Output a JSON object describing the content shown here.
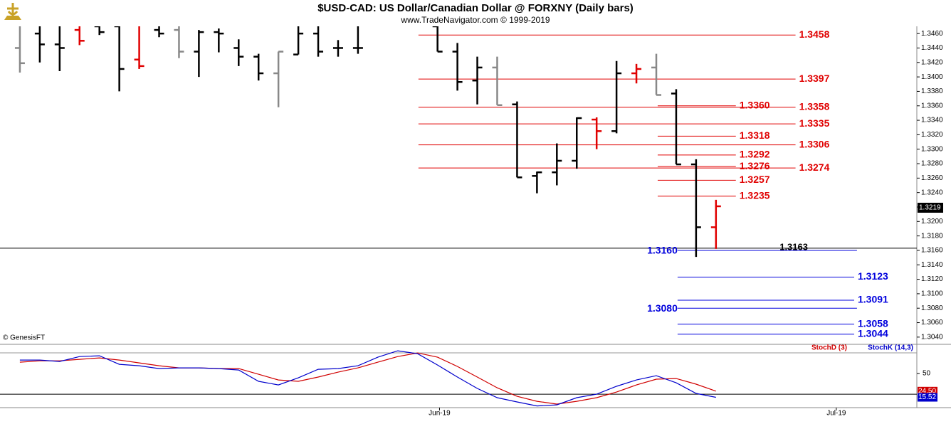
{
  "chart_data": [
    {
      "type": "ohlc",
      "title": "$USD-CAD:  US Dollar/Canadian Dollar @ FORXNY  (Daily bars)",
      "subtitle": "www.TradeNavigator.com © 1999-2019",
      "credit": "© GenesisFT",
      "x": [
        0,
        1,
        2,
        3,
        4,
        5,
        6,
        7,
        8,
        9,
        10,
        11,
        12,
        13,
        14,
        15,
        16,
        17,
        21,
        22,
        23,
        24,
        25,
        26,
        27,
        28,
        29,
        30,
        31,
        32,
        33,
        34,
        35
      ],
      "open": [
        1.344,
        1.346,
        1.3445,
        1.3465,
        1.347,
        1.347,
        1.3424,
        1.3465,
        1.3465,
        1.3435,
        1.3462,
        1.344,
        1.3428,
        1.3405,
        1.3431,
        1.346,
        1.344,
        1.344,
        1.347,
        1.3435,
        1.3395,
        1.3413,
        1.3362,
        1.3263,
        1.3268,
        1.3284,
        1.3341,
        1.3325,
        1.3405,
        1.3413,
        1.3377,
        1.3279,
        1.3192
      ],
      "high": [
        1.3475,
        1.348,
        1.348,
        1.3475,
        1.348,
        1.348,
        1.347,
        1.3475,
        1.348,
        1.3465,
        1.3467,
        1.3452,
        1.3432,
        1.3435,
        1.348,
        1.347,
        1.3451,
        1.347,
        1.348,
        1.3447,
        1.3428,
        1.3428,
        1.3366,
        1.3269,
        1.3308,
        1.3344,
        1.3344,
        1.3422,
        1.3418,
        1.3432,
        1.3383,
        1.3286,
        1.323
      ],
      "low": [
        1.3406,
        1.342,
        1.3408,
        1.3444,
        1.3458,
        1.338,
        1.3411,
        1.3455,
        1.3426,
        1.34,
        1.3434,
        1.3415,
        1.3395,
        1.3358,
        1.3431,
        1.3428,
        1.3428,
        1.3432,
        1.3435,
        1.3381,
        1.3362,
        1.3361,
        1.3261,
        1.3239,
        1.325,
        1.3273,
        1.33,
        1.3322,
        1.3391,
        1.3375,
        1.3279,
        1.3151,
        1.3162
      ],
      "close": [
        1.3419,
        1.3445,
        1.344,
        1.345,
        1.3462,
        1.3411,
        1.3415,
        1.346,
        1.3435,
        1.3462,
        1.346,
        1.3428,
        1.3405,
        1.3435,
        1.346,
        1.3435,
        1.344,
        1.344,
        1.3435,
        1.3393,
        1.3413,
        1.3361,
        1.3261,
        1.3268,
        1.3284,
        1.3343,
        1.3325,
        1.3405,
        1.3411,
        1.3375,
        1.3279,
        1.3192,
        1.3221
      ],
      "colors": [
        "#888888",
        "#000000",
        "#000000",
        "#e00000",
        "#000000",
        "#000000",
        "#e00000",
        "#000000",
        "#888888",
        "#000000",
        "#000000",
        "#000000",
        "#000000",
        "#888888",
        "#000000",
        "#000000",
        "#000000",
        "#000000",
        "#000000",
        "#000000",
        "#000000",
        "#888888",
        "#000000",
        "#000000",
        "#000000",
        "#000000",
        "#e00000",
        "#000000",
        "#e00000",
        "#888888",
        "#000000",
        "#000000",
        "#e00000"
      ],
      "xlim": [
        -1,
        45.1
      ],
      "ylim": [
        1.3031,
        1.347
      ],
      "xticks": [
        {
          "value": 21.1,
          "label": "Jun-19"
        },
        {
          "value": 41.05,
          "label": "Jul-19"
        }
      ],
      "yticks": [
        {
          "value": 1.304,
          "label": "1.3040"
        },
        {
          "value": 1.306,
          "label": "1.3060"
        },
        {
          "value": 1.308,
          "label": "1.3080"
        },
        {
          "value": 1.31,
          "label": "1.3100"
        },
        {
          "value": 1.312,
          "label": "1.3120"
        },
        {
          "value": 1.314,
          "label": "1.3140"
        },
        {
          "value": 1.316,
          "label": "1.3160"
        },
        {
          "value": 1.318,
          "label": "1.3180"
        },
        {
          "value": 1.32,
          "label": "1.3200"
        },
        {
          "value": 1.322,
          "label": "1.3220"
        },
        {
          "value": 1.324,
          "label": "1.3240"
        },
        {
          "value": 1.326,
          "label": "1.3260"
        },
        {
          "value": 1.328,
          "label": "1.3280"
        },
        {
          "value": 1.33,
          "label": "1.3300"
        },
        {
          "value": 1.332,
          "label": "1.3320"
        },
        {
          "value": 1.334,
          "label": "1.3340"
        },
        {
          "value": 1.336,
          "label": "1.3360"
        },
        {
          "value": 1.338,
          "label": "1.3380"
        },
        {
          "value": 1.34,
          "label": "1.3400"
        },
        {
          "value": 1.342,
          "label": "1.3420"
        },
        {
          "value": 1.344,
          "label": "1.3440"
        },
        {
          "value": 1.346,
          "label": "1.3460"
        }
      ],
      "levels": [
        {
          "value": 1.3458,
          "label": "1.3458",
          "color": "#e00000",
          "from": 20.04,
          "to": 39.0,
          "label_side": "end"
        },
        {
          "value": 1.3397,
          "label": "1.3397",
          "color": "#e00000",
          "from": 20.04,
          "to": 39.0,
          "label_side": "end"
        },
        {
          "value": 1.3358,
          "label": "1.3358",
          "color": "#e00000",
          "from": 20.04,
          "to": 39.0,
          "label_side": "end"
        },
        {
          "value": 1.3335,
          "label": "1.3335",
          "color": "#e00000",
          "from": 20.04,
          "to": 39.0,
          "label_side": "end"
        },
        {
          "value": 1.3306,
          "label": "1.3306",
          "color": "#e00000",
          "from": 20.04,
          "to": 39.0,
          "label_side": "end"
        },
        {
          "value": 1.3274,
          "label": "1.3274",
          "color": "#e00000",
          "from": 20.04,
          "to": 39.0,
          "label_side": "end"
        },
        {
          "value": 1.336,
          "label": "1.3360",
          "color": "#e00000",
          "from": 32.07,
          "to": 36.0,
          "label_side": "end"
        },
        {
          "value": 1.3318,
          "label": "1.3318",
          "color": "#e00000",
          "from": 32.07,
          "to": 36.0,
          "label_side": "end"
        },
        {
          "value": 1.3292,
          "label": "1.3292",
          "color": "#e00000",
          "from": 32.07,
          "to": 36.0,
          "label_side": "end"
        },
        {
          "value": 1.3276,
          "label": "1.3276",
          "color": "#e00000",
          "from": 32.07,
          "to": 36.0,
          "label_side": "end"
        },
        {
          "value": 1.3257,
          "label": "1.3257",
          "color": "#e00000",
          "from": 32.07,
          "to": 36.0,
          "label_side": "end"
        },
        {
          "value": 1.3235,
          "label": "1.3235",
          "color": "#e00000",
          "from": 32.07,
          "to": 36.0,
          "label_side": "end"
        },
        {
          "value": 1.3163,
          "label": "1.3163",
          "color": "#000000",
          "from": -1,
          "to": 45.1,
          "label_side": "inline",
          "label_at": 38.2
        },
        {
          "value": 1.316,
          "label": "1.3160",
          "color": "#0000dd",
          "from": 33.07,
          "to": 42.09,
          "label_side": "start"
        },
        {
          "value": 1.3123,
          "label": "1.3123",
          "color": "#0000dd",
          "from": 33.07,
          "to": 41.95,
          "label_side": "end"
        },
        {
          "value": 1.3091,
          "label": "1.3091",
          "color": "#0000dd",
          "from": 33.07,
          "to": 41.95,
          "label_side": "end"
        },
        {
          "value": 1.308,
          "label": "1.3080",
          "color": "#0000dd",
          "from": 33.07,
          "to": 42.09,
          "label_side": "start"
        },
        {
          "value": 1.3058,
          "label": "1.3058",
          "color": "#0000dd",
          "from": 33.07,
          "to": 41.95,
          "label_side": "end"
        },
        {
          "value": 1.3044,
          "label": "1.3044",
          "color": "#0000dd",
          "from": 33.07,
          "to": 41.95,
          "label_side": "end"
        }
      ],
      "last_price": 1.3219
    },
    {
      "type": "line",
      "x": [
        0,
        1,
        2,
        3,
        4,
        5,
        6,
        7,
        8,
        9,
        10,
        11,
        12,
        13,
        14,
        15,
        16,
        17,
        18,
        19,
        20,
        21,
        22,
        23,
        24,
        25,
        26,
        27,
        28,
        29,
        30,
        31,
        32,
        33,
        34,
        35
      ],
      "xlim": [
        -1,
        45.1
      ],
      "ylim": [
        1.6,
        89.3
      ],
      "yticks": [
        50
      ],
      "guide_lines": [
        {
          "value": 80,
          "color": "#999999"
        },
        {
          "value": 20,
          "color": "#000000"
        }
      ],
      "series": [
        {
          "name": "StochD (3)",
          "color": "#d00000",
          "last_label": "24.50",
          "values": [
            66.5,
            68.5,
            68.5,
            70.6,
            72.7,
            69.6,
            65.5,
            61.3,
            58.2,
            58.2,
            57.2,
            57.2,
            49.0,
            40.7,
            38.7,
            44.9,
            52.1,
            58.2,
            66.5,
            74.7,
            79.9,
            73.7,
            60.3,
            44.9,
            29.4,
            17.0,
            9.8,
            5.7,
            9.8,
            15.0,
            23.2,
            33.5,
            41.8,
            42.8,
            34.6,
            24.5
          ]
        },
        {
          "name": "StochK (14,3)",
          "color": "#0000cc",
          "last_label": "15.52",
          "values": [
            69.6,
            69.6,
            67.5,
            74.7,
            75.8,
            63.4,
            61.3,
            57.2,
            58.2,
            58.2,
            57.2,
            55.2,
            38.7,
            33.5,
            43.8,
            56.2,
            57.2,
            61.3,
            73.7,
            83.0,
            78.8,
            62.4,
            44.9,
            28.4,
            15.0,
            8.8,
            3.0,
            4.6,
            15.0,
            20.1,
            31.5,
            40.7,
            46.9,
            36.6,
            21.2,
            15.52
          ]
        }
      ]
    }
  ]
}
